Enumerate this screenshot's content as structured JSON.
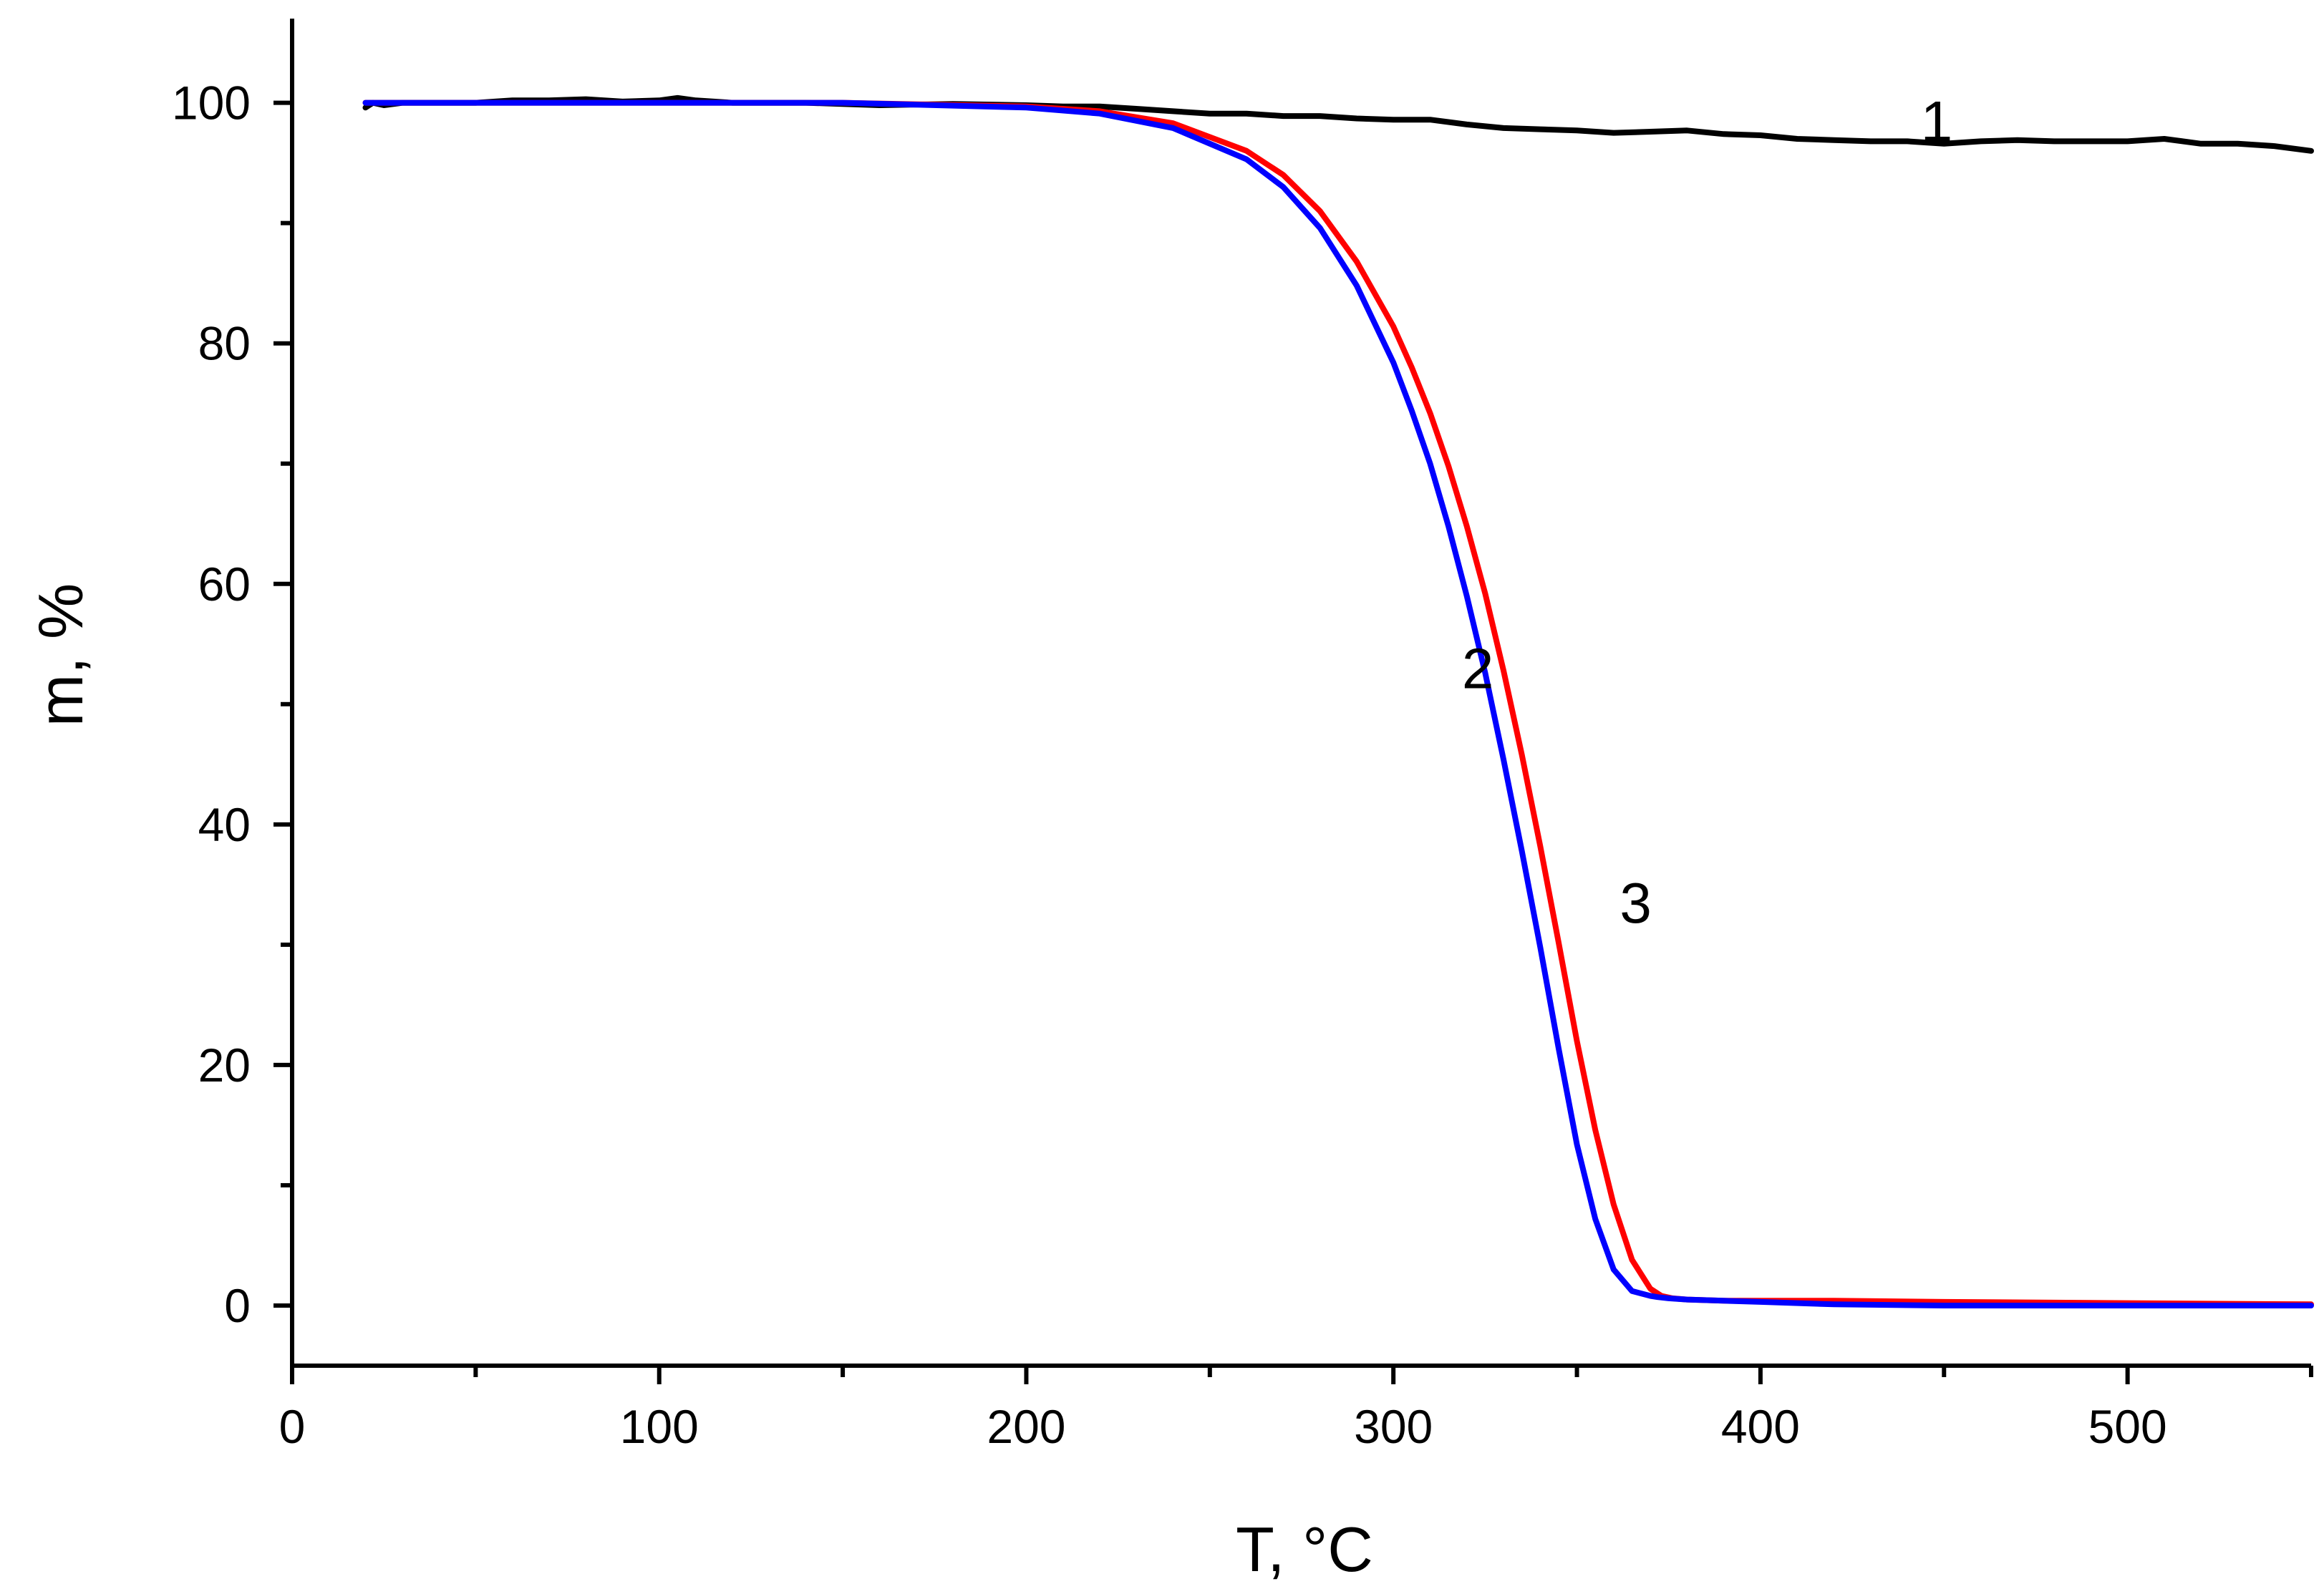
{
  "chart_data": {
    "type": "line",
    "title": "",
    "xlabel": "T, °C",
    "ylabel": "m, %",
    "xlim": [
      0,
      550
    ],
    "ylim": [
      -5,
      107
    ],
    "x_ticks": [
      0,
      100,
      200,
      300,
      400,
      500
    ],
    "y_ticks": [
      0,
      20,
      40,
      60,
      80,
      100
    ],
    "x_tick_labels": [
      "0",
      "100",
      "200",
      "300",
      "400",
      "500"
    ],
    "y_tick_labels": [
      "0",
      "20",
      "40",
      "60",
      "80",
      "100"
    ],
    "grid": false,
    "legend": "none",
    "series": [
      {
        "label": "1",
        "color": "#000000",
        "x": [
          20,
          22,
          25,
          30,
          40,
          50,
          60,
          70,
          80,
          90,
          100,
          105,
          110,
          120,
          140,
          160,
          180,
          200,
          210,
          220,
          230,
          240,
          250,
          260,
          270,
          280,
          290,
          300,
          310,
          320,
          330,
          340,
          350,
          360,
          370,
          380,
          390,
          400,
          410,
          420,
          430,
          440,
          450,
          460,
          470,
          480,
          490,
          500,
          510,
          520,
          530,
          540,
          550
        ],
        "y": [
          99.6,
          100.0,
          99.8,
          100.0,
          100.0,
          100.0,
          100.2,
          100.2,
          100.3,
          100.1,
          100.2,
          100.4,
          100.2,
          100.0,
          100.0,
          99.8,
          99.9,
          99.8,
          99.7,
          99.7,
          99.5,
          99.3,
          99.1,
          99.1,
          98.9,
          98.9,
          98.7,
          98.6,
          98.6,
          98.2,
          97.9,
          97.8,
          97.7,
          97.5,
          97.6,
          97.7,
          97.4,
          97.3,
          97.0,
          96.9,
          96.8,
          96.8,
          96.6,
          96.8,
          96.9,
          96.8,
          96.8,
          96.8,
          97.0,
          96.6,
          96.6,
          96.4,
          96.0
        ]
      },
      {
        "label": "2",
        "color": "#0000ff",
        "x": [
          20,
          50,
          100,
          150,
          200,
          220,
          240,
          260,
          270,
          280,
          290,
          300,
          305,
          310,
          315,
          320,
          325,
          330,
          335,
          340,
          345,
          350,
          355,
          360,
          365,
          370,
          372,
          375,
          380,
          390,
          400,
          420,
          450,
          500,
          550
        ],
        "y": [
          100.0,
          100.0,
          100.0,
          100.0,
          99.6,
          99.1,
          97.9,
          95.3,
          93.0,
          89.6,
          84.8,
          78.4,
          74.4,
          70.0,
          64.8,
          59.0,
          52.6,
          45.4,
          37.8,
          29.8,
          21.4,
          13.4,
          7.2,
          3.0,
          1.2,
          0.8,
          0.7,
          0.6,
          0.5,
          0.4,
          0.3,
          0.1,
          0.0,
          0.0,
          0.0
        ]
      },
      {
        "label": "3",
        "color": "#ff0000",
        "x": [
          20,
          50,
          100,
          150,
          200,
          220,
          240,
          260,
          270,
          280,
          290,
          300,
          305,
          310,
          315,
          320,
          325,
          330,
          335,
          340,
          345,
          350,
          355,
          360,
          365,
          370,
          373,
          376,
          380,
          390,
          400,
          420,
          450,
          500,
          550
        ],
        "y": [
          100.0,
          100.0,
          100.0,
          100.0,
          99.7,
          99.3,
          98.3,
          96.0,
          94.0,
          91.0,
          86.8,
          81.4,
          78.0,
          74.2,
          69.8,
          64.8,
          59.2,
          52.8,
          45.8,
          38.2,
          30.2,
          22.0,
          14.6,
          8.4,
          3.8,
          1.4,
          0.8,
          0.6,
          0.5,
          0.4,
          0.4,
          0.4,
          0.3,
          0.2,
          0.1
        ]
      }
    ],
    "annotations": [
      {
        "text": "1",
        "x": 448,
        "y": 98.5
      },
      {
        "text": "2",
        "x": 323,
        "y": 53
      },
      {
        "text": "3",
        "x": 366,
        "y": 33.5
      }
    ]
  }
}
